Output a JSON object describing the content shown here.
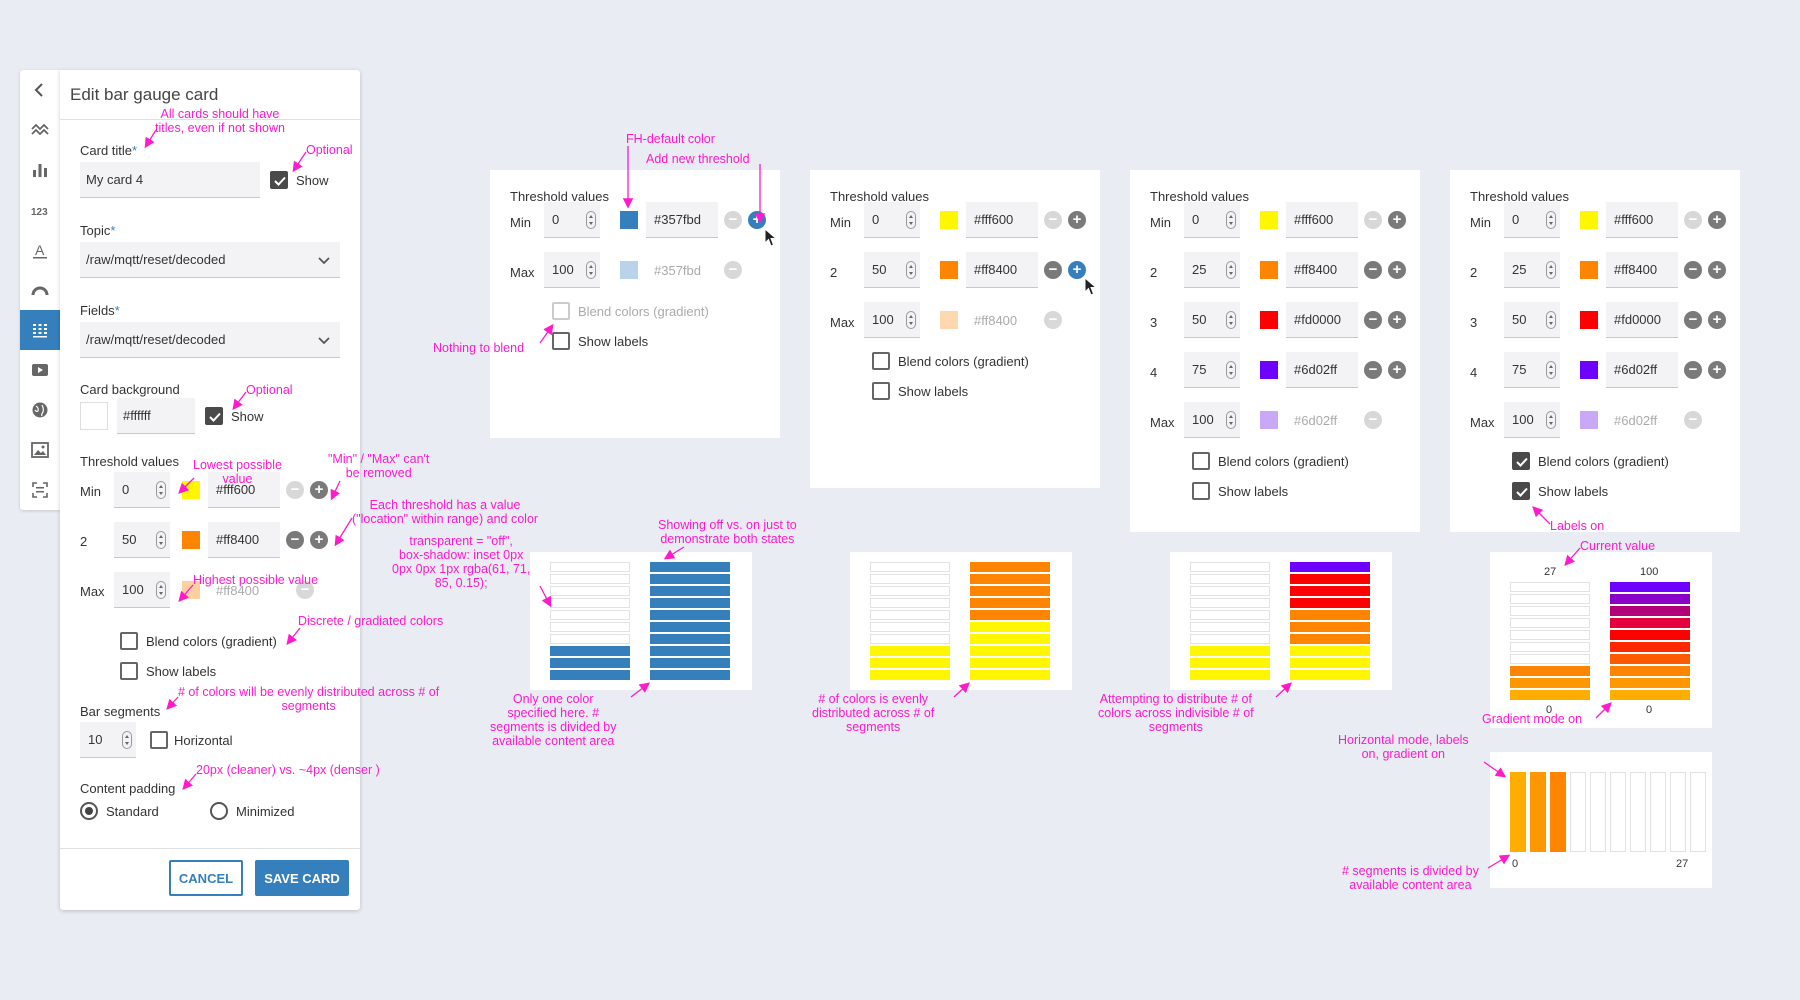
{
  "editor": {
    "title": "Edit bar gauge card",
    "card_title": {
      "label": "Card title",
      "required": "*",
      "value": "My card 4",
      "show_label": "Show"
    },
    "topic": {
      "label": "Topic",
      "required": "*",
      "value": "/raw/mqtt/reset/decoded"
    },
    "fields": {
      "label": "Fields",
      "required": "*",
      "value": "/raw/mqtt/reset/decoded"
    },
    "background": {
      "label": "Card background",
      "value": "#ffffff",
      "show_label": "Show"
    },
    "thresholds": {
      "label": "Threshold values",
      "rows": [
        {
          "name": "Min",
          "value": "0",
          "hex": "#fff600",
          "color": "#fff600"
        },
        {
          "name": "2",
          "value": "50",
          "hex": "#ff8400",
          "color": "#ff8400"
        },
        {
          "name": "Max",
          "value": "100",
          "hex": "#ff8400",
          "color": "#ffcfa0"
        }
      ]
    },
    "blend_label": "Blend colors (gradient)",
    "show_labels_label": "Show labels",
    "segments": {
      "label": "Bar segments",
      "value": "10",
      "horizontal_label": "Horizontal"
    },
    "padding": {
      "label": "Content padding",
      "standard": "Standard",
      "minimized": "Minimized"
    },
    "cancel": "CANCEL",
    "save": "SAVE CARD"
  },
  "panels": [
    {
      "title": "Threshold values",
      "rows": [
        {
          "name": "Min",
          "value": "0",
          "hex": "#357fbd",
          "color": "#357fbd",
          "minus": "dis",
          "plus": "blue"
        },
        {
          "name": "Max",
          "value": "100",
          "hex": "#357fbd",
          "color": "#b9d4ea",
          "minus": "dis",
          "plus": "none",
          "faded": true
        }
      ],
      "blend_label": "Blend colors (gradient)",
      "show_labels_label": "Show labels"
    },
    {
      "title": "Threshold values",
      "rows": [
        {
          "name": "Min",
          "value": "0",
          "hex": "#fff600",
          "color": "#fff600"
        },
        {
          "name": "2",
          "value": "50",
          "hex": "#ff8400",
          "color": "#ff8400"
        },
        {
          "name": "Max",
          "value": "100",
          "hex": "#ff8400",
          "color": "#ffd8b0",
          "faded": true
        }
      ],
      "blend_label": "Blend colors (gradient)",
      "show_labels_label": "Show labels"
    },
    {
      "title": "Threshold values",
      "rows": [
        {
          "name": "Min",
          "value": "0",
          "hex": "#fff600",
          "color": "#fff600"
        },
        {
          "name": "2",
          "value": "25",
          "hex": "#ff8400",
          "color": "#ff8400"
        },
        {
          "name": "3",
          "value": "50",
          "hex": "#fd0000",
          "color": "#fd0000"
        },
        {
          "name": "4",
          "value": "75",
          "hex": "#6d02ff",
          "color": "#6d02ff"
        },
        {
          "name": "Max",
          "value": "100",
          "hex": "#6d02ff",
          "color": "#c9a8f5",
          "faded": true
        }
      ],
      "blend_label": "Blend colors (gradient)",
      "show_labels_label": "Show labels"
    },
    {
      "title": "Threshold values",
      "rows": [
        {
          "name": "Min",
          "value": "0",
          "hex": "#fff600",
          "color": "#fff600"
        },
        {
          "name": "2",
          "value": "25",
          "hex": "#ff8400",
          "color": "#ff8400"
        },
        {
          "name": "3",
          "value": "50",
          "hex": "#fd0000",
          "color": "#fd0000"
        },
        {
          "name": "4",
          "value": "75",
          "hex": "#6d02ff",
          "color": "#6d02ff"
        },
        {
          "name": "Max",
          "value": "100",
          "hex": "#6d02ff",
          "color": "#c9a8f5",
          "faded": true
        }
      ],
      "blend_label": "Blend colors (gradient)",
      "show_labels_label": "Show labels"
    }
  ],
  "gauges": {
    "g1": {
      "left": "#357fbd",
      "right": "#357fbd",
      "left_fill": 3
    },
    "g2": {
      "colors": [
        "#fff600",
        "#fff600",
        "#fff600",
        "#fff600",
        "#fff600",
        "#ff8400",
        "#ff8400",
        "#ff8400",
        "#ff8400",
        "#ff8400"
      ],
      "left_fill": 3
    },
    "g3": {
      "colors": [
        "#fff600",
        "#fff600",
        "#fff600",
        "#ff8400",
        "#ff8400",
        "#ff8400",
        "#fd0000",
        "#fd0000",
        "#fd0000",
        "#6d02ff"
      ],
      "left_fill": 3
    },
    "g4": {
      "colors": [
        "#ffae00",
        "#ff9800",
        "#ff8400",
        "#ff5a00",
        "#fd2800",
        "#fd0000",
        "#e4003c",
        "#b0007a",
        "#8a01c8",
        "#6d02ff"
      ],
      "left_fill": 3,
      "left_top": "27",
      "right_top": "100",
      "left_bottom": "0",
      "right_bottom": "0"
    },
    "g5": {
      "colors": [
        "#ffae00",
        "#ff9800",
        "#ff8400"
      ],
      "fill": 3,
      "start": "0",
      "end": "27"
    }
  },
  "annotations": {
    "a1": "All cards should have\ntitles, even if not shown",
    "a2": "Optional",
    "a3": "Optional",
    "a4": "Lowest possible\nvalue",
    "a5": "\"Min\" / \"Max\" can't\nbe removed",
    "a6": "Each threshold has a value\n(\"location\" within range) and color",
    "a7": "Highest possible value",
    "a8": "Discrete / gradiated colors",
    "a9": "# of colors will be evenly distributed across # of\nsegments",
    "a10": "20px (cleaner) vs. ~4px (denser )",
    "a11": "FH-default color",
    "a12": "Add new threshold",
    "a13": "Nothing to blend",
    "a14": "transparent = \"off\",\nbox-shadow: inset 0px\n0px 0px 1px rgba(61, 71,\n85, 0.15);",
    "a15": "Showing off vs. on just to\ndemonstrate both states",
    "a16": "Only one color\nspecified here. #\nsegments is divided by\navailable content area",
    "a17": "# of colors is evenly\ndistributed across # of\nsegments",
    "a18": "Attempting to distribute # of\ncolors across indivisible # of\nsegments",
    "a19": "Labels on",
    "a20": "Current value",
    "a21": "Gradient mode on",
    "a22": "Horizontal mode, labels\non, gradient on",
    "a23": "# segments is divided by\navailable content area"
  },
  "colors": {
    "accent": "#357fbd",
    "annotation": "#ff1acb"
  },
  "icons": [
    "chevron-left-icon",
    "line-chart-icon",
    "bar-chart-icon",
    "number-icon",
    "text-icon",
    "gauge-icon",
    "bar-gauge-icon",
    "video-icon",
    "globe-icon",
    "image-icon",
    "scan-icon"
  ]
}
